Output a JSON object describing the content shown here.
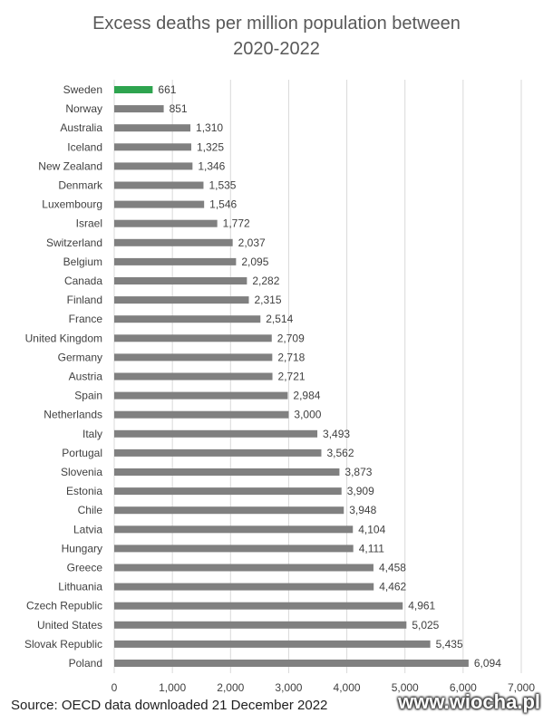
{
  "chart_data": {
    "type": "bar",
    "orientation": "horizontal",
    "title_lines": [
      "Excess deaths per million population between",
      "2020-2022"
    ],
    "categories": [
      "Sweden",
      "Norway",
      "Australia",
      "Iceland",
      "New Zealand",
      "Denmark",
      "Luxembourg",
      "Israel",
      "Switzerland",
      "Belgium",
      "Canada",
      "Finland",
      "France",
      "United Kingdom",
      "Germany",
      "Austria",
      "Spain",
      "Netherlands",
      "Italy",
      "Portugal",
      "Slovenia",
      "Estonia",
      "Chile",
      "Latvia",
      "Hungary",
      "Greece",
      "Lithuania",
      "Czech Republic",
      "United States",
      "Slovak Republic",
      "Poland"
    ],
    "values": [
      661,
      851,
      1310,
      1325,
      1346,
      1535,
      1546,
      1772,
      2037,
      2095,
      2282,
      2315,
      2514,
      2709,
      2718,
      2721,
      2984,
      3000,
      3493,
      3562,
      3873,
      3909,
      3948,
      4104,
      4111,
      4458,
      4462,
      4961,
      5025,
      5435,
      6094
    ],
    "value_labels": [
      "661",
      "851",
      "1,310",
      "1,325",
      "1,346",
      "1,535",
      "1,546",
      "1,772",
      "2,037",
      "2,095",
      "2,282",
      "2,315",
      "2,514",
      "2,709",
      "2,718",
      "2,721",
      "2,984",
      "3,000",
      "3,493",
      "3,562",
      "3,873",
      "3,909",
      "3,948",
      "4,104",
      "4,111",
      "4,458",
      "4,462",
      "4,961",
      "5,025",
      "5,435",
      "6,094"
    ],
    "highlight_category": "Sweden",
    "xlim": [
      0,
      7000
    ],
    "x_ticks": [
      0,
      1000,
      2000,
      3000,
      4000,
      5000,
      6000,
      7000
    ],
    "x_tick_labels": [
      "0",
      "1,000",
      "2,000",
      "3,000",
      "4,000",
      "5,000",
      "6,000",
      "7,000"
    ],
    "grid": true,
    "colors": {
      "bar": "#808080",
      "highlight": "#2ea44f",
      "grid": "#d9d9d9"
    }
  },
  "source": "Source: OECD data downloaded 21 December 2022",
  "watermark": "www.wiocha.pl"
}
